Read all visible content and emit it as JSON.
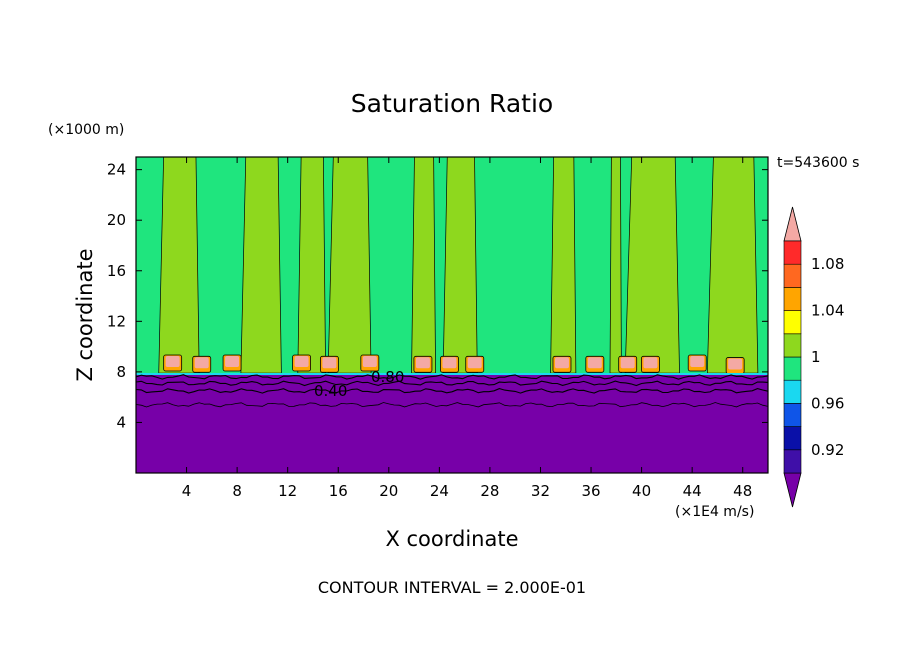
{
  "chart_data": {
    "type": "heatmap",
    "title": "Saturation Ratio",
    "xlabel": "X coordinate",
    "ylabel": "Z coordinate",
    "x_unit": "(×1E4 m/s)",
    "y_unit": "(×1000 m)",
    "time_label": "t=543600 s",
    "footer": "CONTOUR INTERVAL = 2.000E-01",
    "xlim": [
      0,
      50
    ],
    "ylim": [
      0,
      25
    ],
    "x_ticks": [
      "4",
      "8",
      "12",
      "16",
      "20",
      "24",
      "28",
      "32",
      "36",
      "40",
      "44",
      "48"
    ],
    "y_ticks": [
      "4",
      "8",
      "12",
      "16",
      "20",
      "24"
    ],
    "contour_labels": [
      "0.40",
      "0.80"
    ],
    "boundary_level_km": 7.9,
    "lower_layer": {
      "range_km": [
        0,
        7.9
      ],
      "saturation": "< 0.92",
      "color": "#7700a8"
    },
    "upper_layer": {
      "range_km": [
        7.9,
        25
      ],
      "saturated_columns_x": [
        [
          1.8,
          5.0
        ],
        [
          8.3,
          11.5
        ],
        [
          12.8,
          15.0
        ],
        [
          15.2,
          18.6
        ],
        [
          21.8,
          23.7
        ],
        [
          24.3,
          27.0
        ],
        [
          32.8,
          34.8
        ],
        [
          37.5,
          38.4
        ],
        [
          38.7,
          43.0
        ],
        [
          45.2,
          49.2
        ]
      ],
      "colors": {
        "saturated": "#8ed81e",
        "subsaturated": "#1fe57e"
      }
    },
    "cloud_cells": [
      {
        "x": 2.9,
        "z": 8.7
      },
      {
        "x": 5.2,
        "z": 8.6
      },
      {
        "x": 7.6,
        "z": 8.7
      },
      {
        "x": 13.1,
        "z": 8.7
      },
      {
        "x": 15.3,
        "z": 8.6
      },
      {
        "x": 18.5,
        "z": 8.7
      },
      {
        "x": 22.7,
        "z": 8.6
      },
      {
        "x": 24.8,
        "z": 8.6
      },
      {
        "x": 26.8,
        "z": 8.6
      },
      {
        "x": 33.7,
        "z": 8.6
      },
      {
        "x": 36.3,
        "z": 8.6
      },
      {
        "x": 38.9,
        "z": 8.6
      },
      {
        "x": 40.7,
        "z": 8.6
      },
      {
        "x": 44.4,
        "z": 8.7
      },
      {
        "x": 47.4,
        "z": 8.5
      }
    ],
    "colorbar": {
      "labels": [
        "1.08",
        "1.04",
        "1",
        "0.96",
        "0.92"
      ],
      "bins": [
        {
          "from": "",
          "to": "0.9",
          "color": "#7700a8"
        },
        {
          "from": "0.9",
          "to": "0.92",
          "color": "#3f0fa8"
        },
        {
          "from": "0.92",
          "to": "0.94",
          "color": "#0a10a8"
        },
        {
          "from": "0.94",
          "to": "0.96",
          "color": "#0f55e8"
        },
        {
          "from": "0.96",
          "to": "0.98",
          "color": "#1ad8f0"
        },
        {
          "from": "0.98",
          "to": "1",
          "color": "#1fe57e"
        },
        {
          "from": "1",
          "to": "1.02",
          "color": "#8ed81e"
        },
        {
          "from": "1.02",
          "to": "1.04",
          "color": "#ffff00"
        },
        {
          "from": "1.04",
          "to": "1.06",
          "color": "#ffa500"
        },
        {
          "from": "1.06",
          "to": "1.08",
          "color": "#ff6820"
        },
        {
          "from": "1.08",
          "to": "1.1",
          "color": "#ff2a2a"
        },
        {
          "from": "1.1",
          "to": "",
          "color": "#f4a9a4"
        }
      ]
    }
  }
}
